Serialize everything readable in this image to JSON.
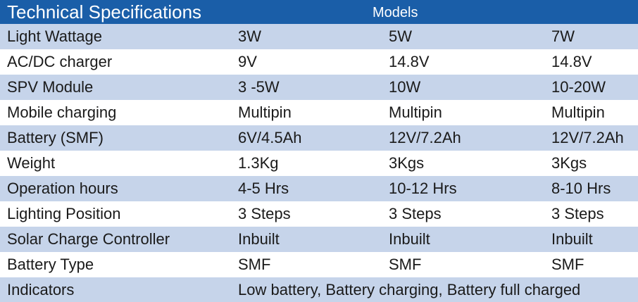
{
  "header": {
    "title": "Technical Specifications",
    "models_label": "Models"
  },
  "rows": [
    {
      "label": "Light Wattage",
      "values": [
        "3W",
        "5W",
        "7W"
      ]
    },
    {
      "label": "AC/DC charger",
      "values": [
        "9V",
        "14.8V",
        "14.8V"
      ]
    },
    {
      "label": "SPV Module",
      "values": [
        "3 -5W",
        "10W",
        "10-20W"
      ]
    },
    {
      "label": "Mobile charging",
      "values": [
        "Multipin",
        "Multipin",
        "Multipin"
      ]
    },
    {
      "label": "Battery (SMF)",
      "values": [
        "6V/4.5Ah",
        "12V/7.2Ah",
        "12V/7.2Ah"
      ]
    },
    {
      "label": "Weight",
      "values": [
        "1.3Kg",
        "3Kgs",
        "3Kgs"
      ]
    },
    {
      "label": "Operation hours",
      "values": [
        "4-5 Hrs",
        "10-12 Hrs",
        "8-10 Hrs"
      ]
    },
    {
      "label": "Lighting Position",
      "values": [
        "3 Steps",
        "3 Steps",
        "3 Steps"
      ]
    },
    {
      "label": "Solar Charge Controller",
      "values": [
        "Inbuilt",
        "Inbuilt",
        "Inbuilt"
      ]
    },
    {
      "label": "Battery Type",
      "values": [
        "SMF",
        "SMF",
        "SMF"
      ]
    }
  ],
  "indicators": {
    "label": "Indicators",
    "value": "Low battery, Battery charging, Battery full charged"
  },
  "colors": {
    "header_bg": "#1a5ea8",
    "shaded_row": "#c6d4ea",
    "plain_row": "#ffffff"
  }
}
